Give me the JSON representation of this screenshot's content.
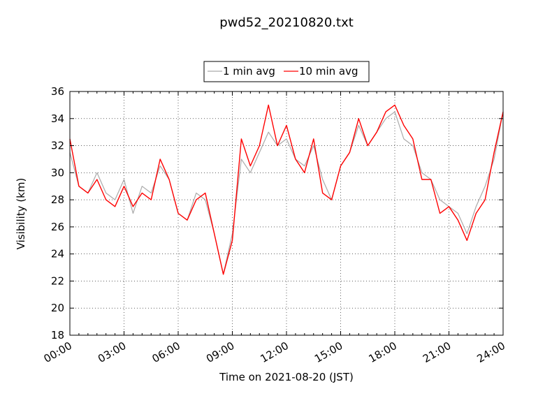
{
  "chart_data": {
    "type": "line",
    "title": "pwd52_20210820.txt",
    "xlabel": "Time on 2021-08-20 (JST)",
    "ylabel": "Visibility (km)",
    "xlim": [
      "00:00",
      "24:00"
    ],
    "ylim": [
      18,
      36
    ],
    "x_unit": "hours",
    "x_ticks": [
      "00:00",
      "03:00",
      "06:00",
      "09:00",
      "12:00",
      "15:00",
      "18:00",
      "21:00",
      "24:00"
    ],
    "y_ticks": [
      "18",
      "20",
      "22",
      "24",
      "26",
      "28",
      "30",
      "32",
      "34",
      "36"
    ],
    "grid": true,
    "legend_position": "top-center",
    "legend": [
      "1 min avg",
      "10 min avg"
    ],
    "series": [
      {
        "name": "1 min avg",
        "color": "#aaaaaa",
        "x": [
          "00:00",
          "00:30",
          "01:00",
          "01:30",
          "02:00",
          "02:30",
          "03:00",
          "03:30",
          "04:00",
          "04:30",
          "05:00",
          "05:30",
          "06:00",
          "06:30",
          "07:00",
          "07:30",
          "08:00",
          "08:30",
          "09:00",
          "09:30",
          "10:00",
          "10:30",
          "11:00",
          "11:30",
          "12:00",
          "12:30",
          "13:00",
          "13:30",
          "14:00",
          "14:30",
          "15:00",
          "15:30",
          "16:00",
          "16:30",
          "17:00",
          "17:30",
          "18:00",
          "18:30",
          "19:00",
          "19:30",
          "20:00",
          "20:30",
          "21:00",
          "21:30",
          "22:00",
          "22:30",
          "23:00",
          "23:30",
          "24:00"
        ],
        "y": [
          31.5,
          29.0,
          28.5,
          30.0,
          28.5,
          28.0,
          29.5,
          27.0,
          29.0,
          28.5,
          30.5,
          29.5,
          27.0,
          26.5,
          28.5,
          28.0,
          25.5,
          22.5,
          25.5,
          31.0,
          30.0,
          31.5,
          33.0,
          32.0,
          32.5,
          31.0,
          30.5,
          32.0,
          29.5,
          28.0,
          30.5,
          31.5,
          33.5,
          32.0,
          33.0,
          34.0,
          34.5,
          32.5,
          32.0,
          30.0,
          29.5,
          28.0,
          27.5,
          27.0,
          25.5,
          27.5,
          29.0,
          31.0,
          34.5
        ]
      },
      {
        "name": "10 min avg",
        "color": "#ff0000",
        "x": [
          "00:00",
          "00:30",
          "01:00",
          "01:30",
          "02:00",
          "02:30",
          "03:00",
          "03:30",
          "04:00",
          "04:30",
          "05:00",
          "05:30",
          "06:00",
          "06:30",
          "07:00",
          "07:30",
          "08:00",
          "08:30",
          "09:00",
          "09:30",
          "10:00",
          "10:30",
          "11:00",
          "11:30",
          "12:00",
          "12:30",
          "13:00",
          "13:30",
          "14:00",
          "14:30",
          "15:00",
          "15:30",
          "16:00",
          "16:30",
          "17:00",
          "17:30",
          "18:00",
          "18:30",
          "19:00",
          "19:30",
          "20:00",
          "20:30",
          "21:00",
          "21:30",
          "22:00",
          "22:30",
          "23:00",
          "23:30",
          "24:00"
        ],
        "y": [
          32.5,
          29.0,
          28.5,
          29.5,
          28.0,
          27.5,
          29.0,
          27.5,
          28.5,
          28.0,
          31.0,
          29.5,
          27.0,
          26.5,
          28.0,
          28.5,
          25.5,
          22.5,
          25.0,
          32.5,
          30.5,
          32.0,
          35.0,
          32.0,
          33.5,
          31.0,
          30.0,
          32.5,
          28.5,
          28.0,
          30.5,
          31.5,
          34.0,
          32.0,
          33.0,
          34.5,
          35.0,
          33.5,
          32.5,
          29.5,
          29.5,
          27.0,
          27.5,
          26.5,
          25.0,
          27.0,
          28.0,
          31.5,
          34.5
        ]
      }
    ]
  }
}
